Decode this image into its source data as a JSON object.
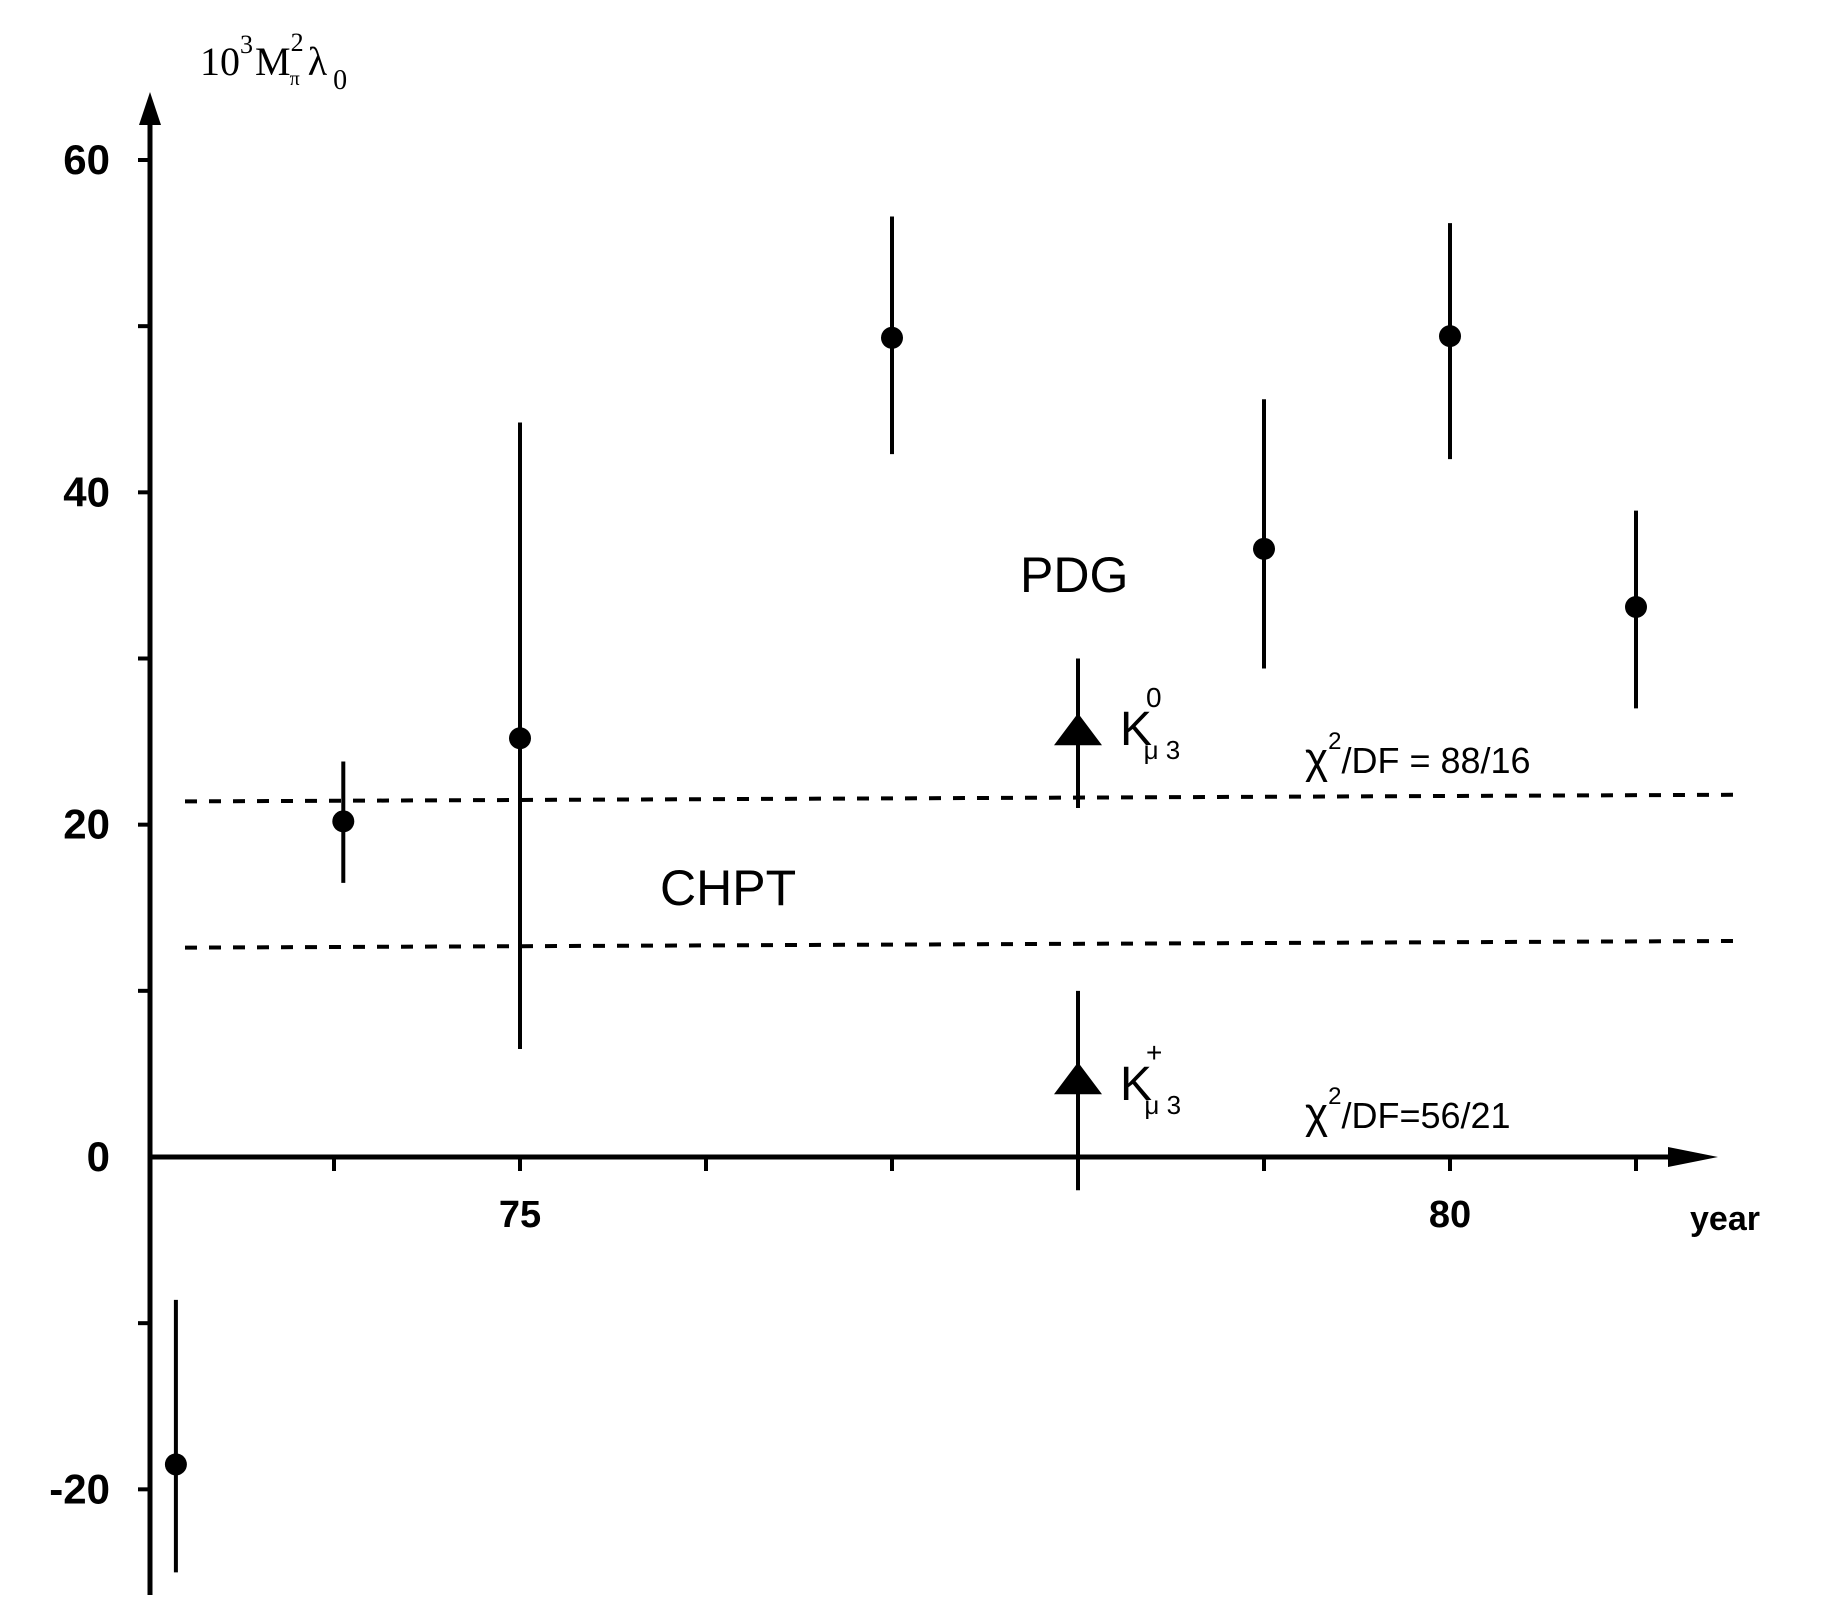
{
  "chart_data": {
    "type": "scatter",
    "title": "",
    "ylabel": "10³M²π λ₀",
    "ylabel_parts": {
      "base": "10",
      "exp": "3",
      "mass": "M",
      "mass_sup": "2",
      "mass_sub": "π",
      "lambda": "λ",
      "lambda_sub": "0"
    },
    "xlabel": "year",
    "xlim": [
      73,
      81.6
    ],
    "ylim": [
      -25,
      63
    ],
    "x_ticks": [
      73,
      74,
      75,
      76,
      77,
      78,
      79,
      80,
      81
    ],
    "x_tick_labels": [
      {
        "x": 75,
        "text": "75"
      },
      {
        "x": 80,
        "text": "80"
      }
    ],
    "y_ticks": [
      -20,
      -10,
      0,
      10,
      20,
      30,
      40,
      50,
      60
    ],
    "y_tick_labels": [
      {
        "y": 60,
        "text": "60"
      },
      {
        "y": 40,
        "text": "40"
      },
      {
        "y": 20,
        "text": "20"
      },
      {
        "y": 0,
        "text": "0"
      },
      {
        "y": -20,
        "text": "-20"
      }
    ],
    "grid": false,
    "points": [
      {
        "x": 73.15,
        "y": -18.5,
        "y_low": -25,
        "y_high": -8.6
      },
      {
        "x": 74.05,
        "y": 20.2,
        "y_low": 16.5,
        "y_high": 23.8
      },
      {
        "x": 75.0,
        "y": 25.2,
        "y_low": 6.5,
        "y_high": 44.2
      },
      {
        "x": 77.0,
        "y": 49.3,
        "y_low": 42.3,
        "y_high": 56.6
      },
      {
        "x": 79.0,
        "y": 36.6,
        "y_low": 29.4,
        "y_high": 45.6
      },
      {
        "x": 80.0,
        "y": 49.4,
        "y_low": 42.0,
        "y_high": 56.2
      },
      {
        "x": 81.0,
        "y": 33.1,
        "y_low": 27.0,
        "y_high": 38.9
      }
    ],
    "averages": [
      {
        "x": 78.0,
        "y": 25.5,
        "y_low": 21.0,
        "y_high": 30.0,
        "label": "K",
        "label_sub": "μ 3",
        "label_sup": "0",
        "chi": "χ",
        "chi_sup": "2",
        "chi_rest": "/DF = 88/16"
      },
      {
        "x": 78.0,
        "y": 4.5,
        "y_low": -2.0,
        "y_high": 10.0,
        "label": "K",
        "label_sub": "μ 3",
        "label_sup": "+",
        "chi": "χ",
        "chi_sup": "2",
        "chi_rest": "/DF=56/21"
      }
    ],
    "bands": [
      {
        "y_start": 21.4,
        "y_end": 21.8
      },
      {
        "y_start": 12.6,
        "y_end": 13.0
      }
    ],
    "band_labels": {
      "pdg": "PDG",
      "chpt": "CHPT"
    }
  }
}
